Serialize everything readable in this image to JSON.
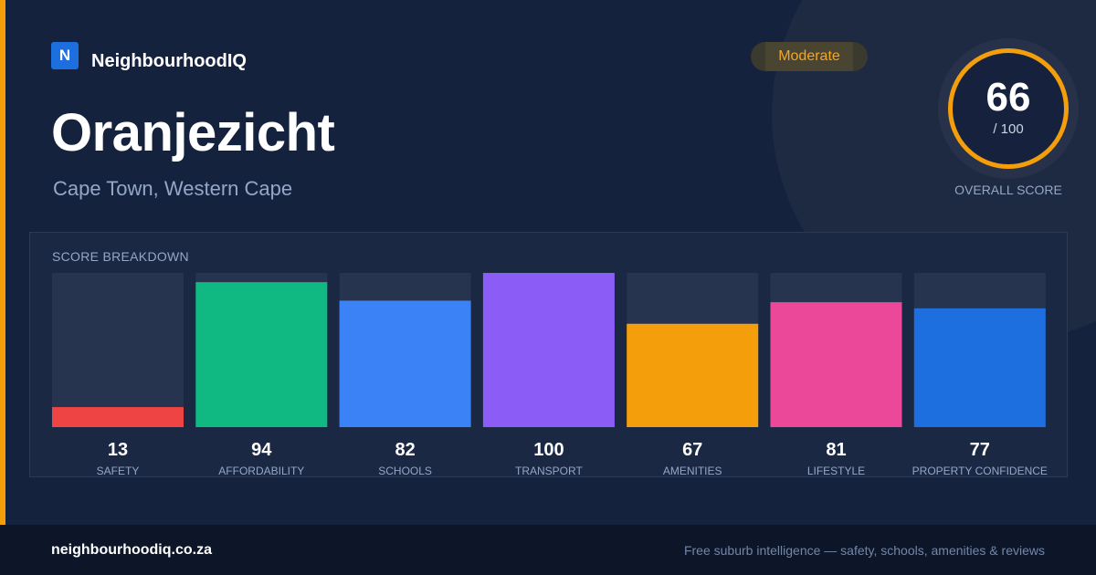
{
  "brand": {
    "logo_letter": "N",
    "name": "NeighbourhoodIQ"
  },
  "suburb": {
    "name": "Oranjezicht",
    "location": "Cape Town, Western Cape"
  },
  "rating": {
    "label": "Moderate",
    "color": "#f5a524"
  },
  "overall": {
    "score": "66",
    "max": "/ 100",
    "caption": "OVERALL SCORE",
    "ring_color": "#f59e0b"
  },
  "breakdown_title": "SCORE BREAKDOWN",
  "chart_data": {
    "type": "bar",
    "categories": [
      "SAFETY",
      "AFFORDABILITY",
      "SCHOOLS",
      "TRANSPORT",
      "AMENITIES",
      "LIFESTYLE",
      "PROPERTY CONFIDENCE"
    ],
    "values": [
      13,
      94,
      82,
      100,
      67,
      81,
      77
    ],
    "colors": [
      "#ef4444",
      "#10b981",
      "#3b82f6",
      "#8b5cf6",
      "#f59e0b",
      "#ec4899",
      "#1d6fe0"
    ],
    "ylim": [
      0,
      100
    ],
    "track_color": "#273450"
  },
  "footer": {
    "url": "neighbourhoodiq.co.za",
    "tagline": "Free suburb intelligence — safety, schools, amenities & reviews"
  }
}
